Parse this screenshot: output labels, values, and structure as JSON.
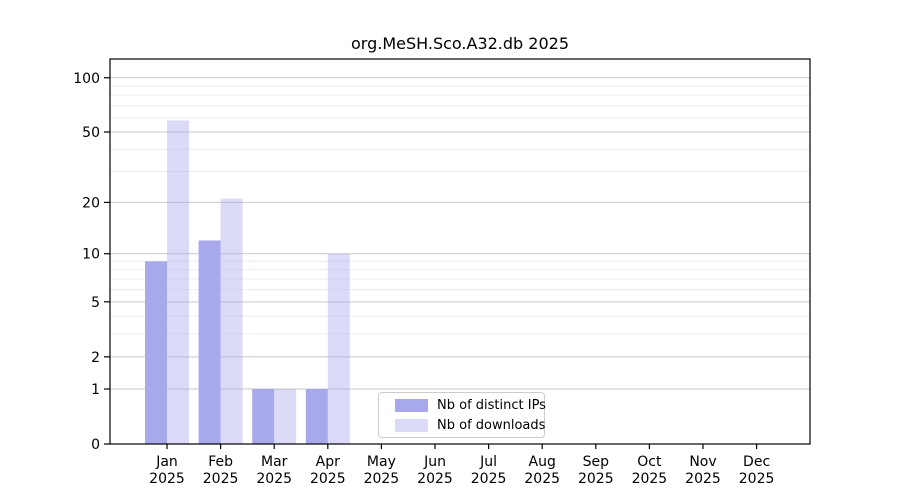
{
  "chart_data": {
    "type": "bar",
    "title": "org.MeSH.Sco.A32.db 2025",
    "xlabel": "",
    "ylabel": "",
    "year_label": "2025",
    "categories": [
      "Jan",
      "Feb",
      "Mar",
      "Apr",
      "May",
      "Jun",
      "Jul",
      "Aug",
      "Sep",
      "Oct",
      "Nov",
      "Dec"
    ],
    "series": [
      {
        "name": "Nb of distinct IPs",
        "color": "#a8a8ed",
        "fill_opacity": 1,
        "values": [
          9,
          12,
          1,
          1,
          0,
          0,
          0,
          0,
          0,
          0,
          0,
          0
        ]
      },
      {
        "name": "Nb of downloads",
        "color": "#aaaaee",
        "fill_opacity": 0.42,
        "values": [
          58,
          21,
          1,
          10,
          0,
          0,
          0,
          0,
          0,
          0,
          0,
          0
        ]
      }
    ],
    "y_axis": {
      "scale": "log10(1+x)",
      "ticks": [
        0,
        1,
        2,
        5,
        10,
        20,
        50,
        100
      ],
      "minor_gridlines": [
        3,
        4,
        6,
        7,
        8,
        9,
        30,
        40,
        60,
        70,
        80,
        90
      ],
      "ylim": [
        0,
        127
      ]
    },
    "grid": true,
    "legend_position": "lower center inside",
    "colors": {
      "spine": "#000000",
      "major_grid": "#c9c9c9",
      "minor_grid": "#ececec",
      "text": "#000000"
    }
  }
}
